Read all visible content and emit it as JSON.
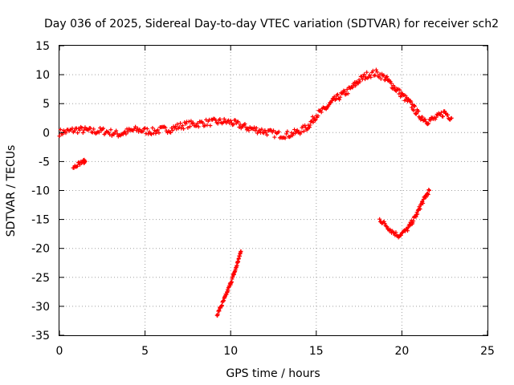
{
  "chart_data": {
    "type": "scatter",
    "title": "Day 036 of 2025, Sidereal Day-to-day VTEC variation (SDTVAR) for receiver sch2",
    "xlabel": "GPS time / hours",
    "ylabel": "SDTVAR / TECUs",
    "xlim": [
      0,
      25
    ],
    "ylim": [
      -35,
      15
    ],
    "xticks": [
      "0",
      "5",
      "10",
      "15",
      "20",
      "25"
    ],
    "yticks": [
      "-35",
      "-30",
      "-25",
      "-20",
      "-15",
      "-10",
      "-5",
      "0",
      "5",
      "10",
      "15"
    ],
    "grid": true,
    "marker_color": "#ff0000",
    "series": [
      {
        "name": "main-arc",
        "band_half_width": 0.6,
        "x": [
          0,
          0.5,
          1,
          1.5,
          2,
          2.5,
          3,
          3.5,
          4,
          4.5,
          5,
          5.5,
          6,
          6.5,
          7,
          7.5,
          8,
          8.5,
          9,
          9.5,
          10,
          10.5,
          11,
          11.5,
          12,
          12.5,
          13,
          13.5,
          14,
          14.5,
          15,
          15.5,
          16,
          16.5,
          17,
          17.5,
          18,
          18.5,
          19,
          19.5,
          20,
          20.5,
          21,
          21.5,
          22,
          22.5,
          22.9
        ],
        "y": [
          0,
          0.2,
          0.5,
          0.4,
          0.2,
          0.3,
          0,
          -0.3,
          0.2,
          0.5,
          0.3,
          0.2,
          0.5,
          0.6,
          1.1,
          1.4,
          1.5,
          1.7,
          1.8,
          1.9,
          1.8,
          1.3,
          0.8,
          0.5,
          0.2,
          -0.2,
          -0.4,
          -0.3,
          0.2,
          1,
          3,
          4,
          5.5,
          6.5,
          7.5,
          9,
          10,
          10.3,
          9.5,
          8,
          6.5,
          5,
          3,
          2,
          2.5,
          3.5,
          2.5
        ]
      },
      {
        "name": "short-arc-early",
        "band_half_width": 0.3,
        "x": [
          0.8,
          1.1,
          1.4,
          1.5
        ],
        "y": [
          -6,
          -5.4,
          -5.0,
          -5.0
        ]
      },
      {
        "name": "steep-arc",
        "band_half_width": 0.3,
        "x": [
          9.2,
          9.6,
          10.0,
          10.3,
          10.6
        ],
        "y": [
          -31.5,
          -29,
          -26,
          -23.5,
          -20.5
        ]
      },
      {
        "name": "late-arc",
        "band_half_width": 0.4,
        "x": [
          18.7,
          19.0,
          19.4,
          19.8,
          20.3,
          20.8,
          21.2,
          21.6
        ],
        "y": [
          -15,
          -15.8,
          -17,
          -17.8,
          -16.8,
          -14.5,
          -12,
          -10
        ]
      }
    ]
  }
}
